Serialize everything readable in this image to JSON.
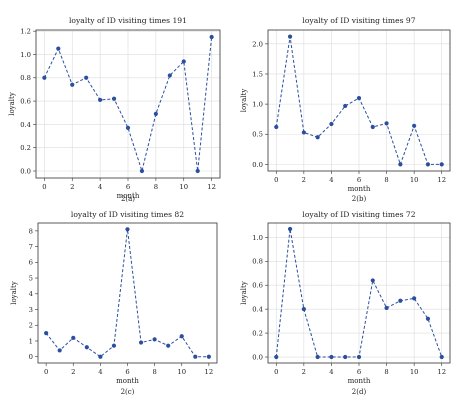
{
  "colors": {
    "series": "#2b4f9e"
  },
  "chart_data": [
    {
      "id": "a",
      "type": "line",
      "title": "loyalty of ID visiting times 191",
      "xlabel": "month",
      "ylabel": "loyalty",
      "caption": "2(a)",
      "grid": true,
      "x": [
        0,
        1,
        2,
        3,
        4,
        5,
        6,
        7,
        8,
        9,
        10,
        11,
        12
      ],
      "values": [
        0.8,
        1.05,
        0.74,
        0.8,
        0.61,
        0.62,
        0.37,
        0.0,
        0.49,
        0.82,
        0.94,
        0.0,
        1.15
      ],
      "xticks": [
        0,
        2,
        4,
        6,
        8,
        10,
        12
      ],
      "xticklabels": [
        "0",
        "2",
        "4",
        "6",
        "8",
        "10",
        "12"
      ],
      "yticks": [
        0,
        0.2,
        0.4,
        0.6,
        0.8,
        1.0,
        1.2
      ],
      "yticklabels": [
        "0.0",
        "0.2",
        "0.4",
        "0.6",
        "0.8",
        "1.0",
        "1.2"
      ],
      "xlim": [
        -0.6,
        12.6
      ],
      "ylim": [
        -0.06,
        1.21
      ]
    },
    {
      "id": "b",
      "type": "line",
      "title": "loyalty of ID visiting times 97",
      "xlabel": "month",
      "ylabel": "loyalty",
      "caption": "2(b)",
      "grid": true,
      "x": [
        0,
        1,
        2,
        3,
        4,
        5,
        6,
        7,
        8,
        9,
        10,
        11,
        12
      ],
      "values": [
        0.62,
        2.12,
        0.53,
        0.45,
        0.67,
        0.97,
        1.1,
        0.62,
        0.68,
        0.0,
        0.64,
        0.0,
        0.0
      ],
      "xticks": [
        0,
        2,
        4,
        6,
        8,
        10,
        12
      ],
      "xticklabels": [
        "0",
        "2",
        "4",
        "6",
        "8",
        "10",
        "12"
      ],
      "yticks": [
        0,
        0.5,
        1.0,
        1.5,
        2.0
      ],
      "yticklabels": [
        "0.0",
        "0.5",
        "1.0",
        "1.5",
        "2.0"
      ],
      "xlim": [
        -0.6,
        12.6
      ],
      "ylim": [
        -0.11,
        2.23
      ]
    },
    {
      "id": "c",
      "type": "line",
      "title": "loyalty of ID visiting times 82",
      "xlabel": "month",
      "ylabel": "loyalty",
      "caption": "2(c)",
      "grid": false,
      "x": [
        0,
        1,
        2,
        3,
        4,
        5,
        6,
        7,
        8,
        9,
        10,
        11,
        12
      ],
      "values": [
        1.5,
        0.4,
        1.2,
        0.6,
        0.0,
        0.7,
        8.1,
        0.9,
        1.1,
        0.7,
        1.3,
        0.0,
        0.0
      ],
      "xticks": [
        0,
        2,
        4,
        6,
        8,
        10,
        12
      ],
      "xticklabels": [
        "0",
        "2",
        "4",
        "6",
        "8",
        "10",
        "12"
      ],
      "yticks": [
        0,
        1,
        2,
        3,
        4,
        5,
        6,
        7,
        8
      ],
      "yticklabels": [
        "0",
        "1",
        "2",
        "3",
        "4",
        "5",
        "6",
        "7",
        "8"
      ],
      "xlim": [
        -0.6,
        12.6
      ],
      "ylim": [
        -0.4,
        8.5
      ]
    },
    {
      "id": "d",
      "type": "line",
      "title": "loyalty of ID visiting times 72",
      "xlabel": "month",
      "ylabel": "loyalty",
      "caption": "2(d)",
      "grid": true,
      "x": [
        0,
        1,
        2,
        3,
        4,
        5,
        6,
        7,
        8,
        9,
        10,
        11,
        12
      ],
      "values": [
        0.0,
        1.07,
        0.4,
        0.0,
        0.0,
        0.0,
        0.0,
        0.64,
        0.41,
        0.47,
        0.49,
        0.32,
        0.0
      ],
      "xticks": [
        0,
        2,
        4,
        6,
        8,
        10,
        12
      ],
      "xticklabels": [
        "0",
        "2",
        "4",
        "6",
        "8",
        "10",
        "12"
      ],
      "yticks": [
        0,
        0.2,
        0.4,
        0.6,
        0.8,
        1.0
      ],
      "yticklabels": [
        "0.0",
        "0.2",
        "0.4",
        "0.6",
        "0.8",
        "1.0"
      ],
      "xlim": [
        -0.6,
        12.6
      ],
      "ylim": [
        -0.05,
        1.12
      ]
    }
  ]
}
